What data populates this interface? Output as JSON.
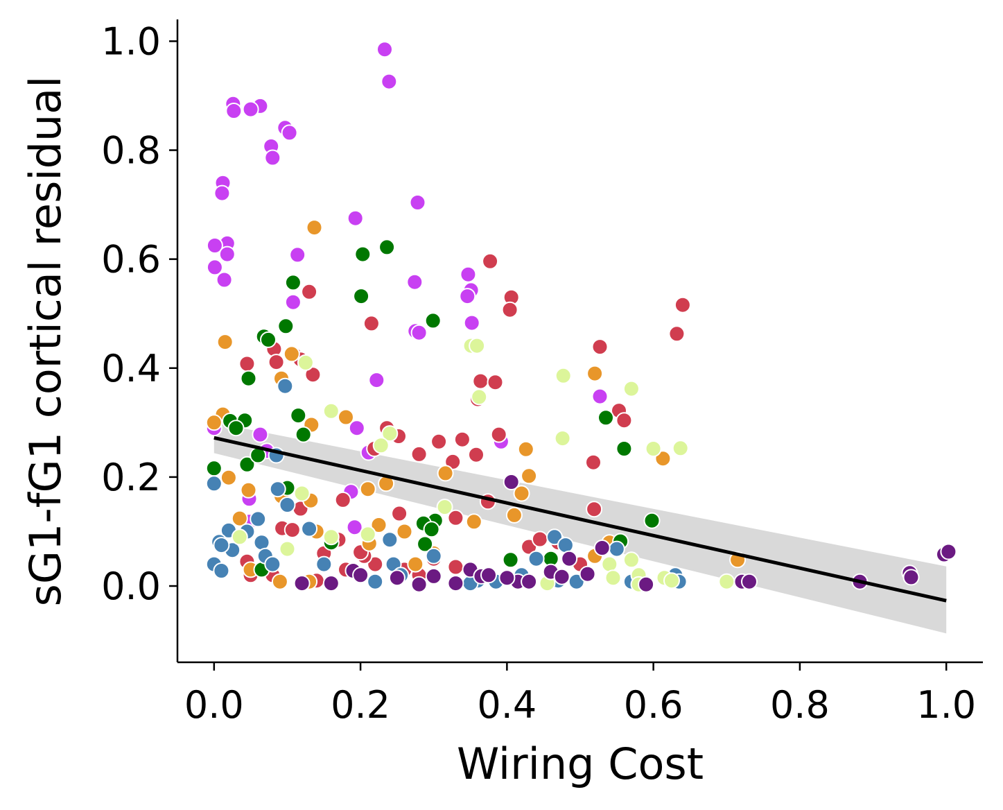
{
  "chart_data": {
    "type": "scatter",
    "title": "",
    "xlabel": "Wiring Cost",
    "ylabel": "sG1-fG1 cortical residual",
    "xlim": [
      -0.05,
      1.05
    ],
    "ylim": [
      -0.14,
      1.04
    ],
    "xticks": [
      0.0,
      0.2,
      0.4,
      0.6,
      0.8,
      1.0
    ],
    "yticks": [
      0.0,
      0.2,
      0.4,
      0.6,
      0.8,
      1.0
    ],
    "xtick_labels": [
      "0.0",
      "0.2",
      "0.4",
      "0.6",
      "0.8",
      "1.0"
    ],
    "ytick_labels": [
      "0.0",
      "0.2",
      "0.4",
      "0.6",
      "0.8",
      "1.0"
    ],
    "grid": false,
    "legend": "none",
    "regression": {
      "color": "#000000",
      "x": [
        0.0,
        1.0
      ],
      "y": [
        0.272,
        -0.027
      ],
      "ci_color": "#d9d9d9",
      "ci_upper": [
        0.3,
        0.036
      ],
      "ci_lower": [
        0.244,
        -0.087
      ]
    },
    "series": [
      {
        "color": "#c840f2",
        "points": [
          [
            0.233,
            0.985
          ],
          [
            0.239,
            0.926
          ],
          [
            0.026,
            0.885
          ],
          [
            0.063,
            0.881
          ],
          [
            0.05,
            0.875
          ],
          [
            0.027,
            0.872
          ],
          [
            0.097,
            0.841
          ],
          [
            0.103,
            0.832
          ],
          [
            0.078,
            0.807
          ],
          [
            0.08,
            0.786
          ],
          [
            0.012,
            0.74
          ],
          [
            0.011,
            0.721
          ],
          [
            0.278,
            0.704
          ],
          [
            0.193,
            0.675
          ],
          [
            0.018,
            0.629
          ],
          [
            0.001,
            0.625
          ],
          [
            0.018,
            0.609
          ],
          [
            0.114,
            0.608
          ],
          [
            0.001,
            0.585
          ],
          [
            0.014,
            0.562
          ],
          [
            0.347,
            0.572
          ],
          [
            0.274,
            0.558
          ],
          [
            0.351,
            0.543
          ],
          [
            0.346,
            0.532
          ],
          [
            0.108,
            0.521
          ],
          [
            0.352,
            0.483
          ],
          [
            0.275,
            0.468
          ],
          [
            0.28,
            0.465
          ],
          [
            0.222,
            0.378
          ],
          [
            0.527,
            0.348
          ],
          [
            0.195,
            0.29
          ],
          [
            0.063,
            0.278
          ],
          [
            0.072,
            0.248
          ],
          [
            0.392,
            0.265
          ],
          [
            0.0,
            0.29
          ],
          [
            0.211,
            0.245
          ],
          [
            0.187,
            0.173
          ],
          [
            0.048,
            0.16
          ],
          [
            0.192,
            0.108
          ],
          [
            0.048,
            0.118
          ]
        ]
      },
      {
        "color": "#d03d4f",
        "points": [
          [
            0.377,
            0.596
          ],
          [
            0.406,
            0.53
          ],
          [
            0.404,
            0.507
          ],
          [
            0.632,
            0.463
          ],
          [
            0.64,
            0.516
          ],
          [
            0.13,
            0.54
          ],
          [
            0.215,
            0.482
          ],
          [
            0.527,
            0.439
          ],
          [
            0.082,
            0.435
          ],
          [
            0.11,
            0.424
          ],
          [
            0.118,
            0.416
          ],
          [
            0.045,
            0.408
          ],
          [
            0.085,
            0.411
          ],
          [
            0.135,
            0.388
          ],
          [
            0.364,
            0.376
          ],
          [
            0.384,
            0.374
          ],
          [
            0.36,
            0.343
          ],
          [
            0.553,
            0.322
          ],
          [
            0.56,
            0.304
          ],
          [
            0.236,
            0.29
          ],
          [
            0.252,
            0.275
          ],
          [
            0.339,
            0.269
          ],
          [
            0.307,
            0.265
          ],
          [
            0.219,
            0.252
          ],
          [
            0.389,
            0.278
          ],
          [
            0.28,
            0.242
          ],
          [
            0.358,
            0.241
          ],
          [
            0.518,
            0.227
          ],
          [
            0.326,
            0.228
          ],
          [
            0.519,
            0.141
          ],
          [
            0.374,
            0.155
          ],
          [
            0.176,
            0.158
          ],
          [
            0.253,
            0.133
          ],
          [
            0.118,
            0.142
          ],
          [
            0.33,
            0.125
          ],
          [
            0.093,
            0.106
          ],
          [
            0.107,
            0.103
          ],
          [
            0.045,
            0.045
          ],
          [
            0.15,
            0.06
          ],
          [
            0.17,
            0.085
          ],
          [
            0.22,
            0.04
          ],
          [
            0.26,
            0.03
          ],
          [
            0.43,
            0.072
          ],
          [
            0.445,
            0.086
          ],
          [
            0.18,
            0.03
          ],
          [
            0.205,
            0.055
          ],
          [
            0.28,
            0.02
          ],
          [
            0.33,
            0.035
          ],
          [
            0.3,
            0.05
          ],
          [
            0.47,
            0.08
          ],
          [
            0.5,
            0.04
          ],
          [
            0.05,
            0.02
          ],
          [
            0.08,
            0.02
          ],
          [
            0.14,
            0.01
          ],
          [
            0.2,
            0.062
          ]
        ]
      },
      {
        "color": "#e8962a",
        "points": [
          [
            0.137,
            0.658
          ],
          [
            0.015,
            0.448
          ],
          [
            0.106,
            0.426
          ],
          [
            0.092,
            0.381
          ],
          [
            0.52,
            0.39
          ],
          [
            0.613,
            0.234
          ],
          [
            0.133,
            0.296
          ],
          [
            0.18,
            0.31
          ],
          [
            0.012,
            0.315
          ],
          [
            0.426,
            0.251
          ],
          [
            0.316,
            0.207
          ],
          [
            0.43,
            0.202
          ],
          [
            0.02,
            0.199
          ],
          [
            0.235,
            0.188
          ],
          [
            0.21,
            0.178
          ],
          [
            0.42,
            0.17
          ],
          [
            0.047,
            0.176
          ],
          [
            0.132,
            0.157
          ],
          [
            0.092,
            0.165
          ],
          [
            0.41,
            0.13
          ],
          [
            0.355,
            0.118
          ],
          [
            0.035,
            0.124
          ],
          [
            0.225,
            0.112
          ],
          [
            0.26,
            0.1
          ],
          [
            0.14,
            0.1
          ],
          [
            0.212,
            0.078
          ],
          [
            0.52,
            0.055
          ],
          [
            0.54,
            0.08
          ],
          [
            0.715,
            0.048
          ],
          [
            0.05,
            0.03
          ],
          [
            0.09,
            0.008
          ],
          [
            0.13,
            0.008
          ],
          [
            0.275,
            0.04
          ],
          [
            0.3,
            0.06
          ],
          [
            0.0,
            0.3
          ]
        ]
      },
      {
        "color": "#007800",
        "points": [
          [
            0.236,
            0.622
          ],
          [
            0.203,
            0.609
          ],
          [
            0.201,
            0.532
          ],
          [
            0.108,
            0.557
          ],
          [
            0.299,
            0.487
          ],
          [
            0.098,
            0.477
          ],
          [
            0.068,
            0.458
          ],
          [
            0.074,
            0.452
          ],
          [
            0.047,
            0.381
          ],
          [
            0.115,
            0.313
          ],
          [
            0.535,
            0.309
          ],
          [
            0.022,
            0.303
          ],
          [
            0.042,
            0.304
          ],
          [
            0.03,
            0.29
          ],
          [
            0.56,
            0.252
          ],
          [
            0.122,
            0.278
          ],
          [
            0.045,
            0.223
          ],
          [
            0.0,
            0.216
          ],
          [
            0.06,
            0.24
          ],
          [
            0.598,
            0.12
          ],
          [
            0.302,
            0.12
          ],
          [
            0.286,
            0.115
          ],
          [
            0.297,
            0.104
          ],
          [
            0.288,
            0.077
          ],
          [
            0.555,
            0.082
          ],
          [
            0.405,
            0.048
          ],
          [
            0.46,
            0.05
          ],
          [
            0.065,
            0.03
          ],
          [
            0.16,
            0.08
          ],
          [
            0.1,
            0.18
          ]
        ]
      },
      {
        "color": "#4682b4",
        "points": [
          [
            0.097,
            0.367
          ],
          [
            0.085,
            0.24
          ],
          [
            0.0,
            0.188
          ],
          [
            0.087,
            0.178
          ],
          [
            0.1,
            0.149
          ],
          [
            0.02,
            0.102
          ],
          [
            0.06,
            0.123
          ],
          [
            0.007,
            0.081
          ],
          [
            0.025,
            0.066
          ],
          [
            0.065,
            0.08
          ],
          [
            0.045,
            0.1
          ],
          [
            0.01,
            0.075
          ],
          [
            0.07,
            0.055
          ],
          [
            0.0,
            0.04
          ],
          [
            0.01,
            0.028
          ],
          [
            0.08,
            0.04
          ],
          [
            0.13,
            0.105
          ],
          [
            0.15,
            0.04
          ],
          [
            0.24,
            0.085
          ],
          [
            0.245,
            0.04
          ],
          [
            0.3,
            0.055
          ],
          [
            0.36,
            0.01
          ],
          [
            0.385,
            0.008
          ],
          [
            0.42,
            0.02
          ],
          [
            0.44,
            0.05
          ],
          [
            0.465,
            0.09
          ],
          [
            0.48,
            0.075
          ],
          [
            0.47,
            0.01
          ],
          [
            0.495,
            0.008
          ],
          [
            0.55,
            0.068
          ],
          [
            0.57,
            0.008
          ],
          [
            0.59,
            0.003
          ],
          [
            0.63,
            0.02
          ],
          [
            0.635,
            0.008
          ],
          [
            0.22,
            0.008
          ],
          [
            0.255,
            0.02
          ],
          [
            0.35,
            0.005
          ]
        ]
      },
      {
        "color": "#dcf59a",
        "points": [
          [
            0.351,
            0.441
          ],
          [
            0.359,
            0.441
          ],
          [
            0.477,
            0.386
          ],
          [
            0.57,
            0.362
          ],
          [
            0.362,
            0.347
          ],
          [
            0.16,
            0.321
          ],
          [
            0.476,
            0.271
          ],
          [
            0.24,
            0.28
          ],
          [
            0.228,
            0.258
          ],
          [
            0.6,
            0.252
          ],
          [
            0.637,
            0.253
          ],
          [
            0.125,
            0.41
          ],
          [
            0.12,
            0.17
          ],
          [
            0.315,
            0.145
          ],
          [
            0.21,
            0.095
          ],
          [
            0.16,
            0.09
          ],
          [
            0.1,
            0.068
          ],
          [
            0.54,
            0.04
          ],
          [
            0.545,
            0.015
          ],
          [
            0.57,
            0.048
          ],
          [
            0.58,
            0.02
          ],
          [
            0.615,
            0.015
          ],
          [
            0.625,
            0.01
          ],
          [
            0.7,
            0.008
          ],
          [
            0.455,
            0.005
          ],
          [
            0.58,
            0.003
          ],
          [
            0.035,
            0.09
          ]
        ]
      },
      {
        "color": "#6b1a82",
        "points": [
          [
            0.997,
            0.058
          ],
          [
            1.003,
            0.063
          ],
          [
            0.95,
            0.024
          ],
          [
            0.952,
            0.016
          ],
          [
            0.882,
            0.008
          ],
          [
            0.721,
            0.008
          ],
          [
            0.731,
            0.008
          ],
          [
            0.406,
            0.191
          ],
          [
            0.415,
            0.008
          ],
          [
            0.43,
            0.008
          ],
          [
            0.46,
            0.026
          ],
          [
            0.475,
            0.017
          ],
          [
            0.485,
            0.05
          ],
          [
            0.51,
            0.022
          ],
          [
            0.53,
            0.07
          ],
          [
            0.59,
            0.003
          ],
          [
            0.12,
            0.005
          ],
          [
            0.16,
            0.005
          ],
          [
            0.19,
            0.028
          ],
          [
            0.25,
            0.015
          ],
          [
            0.28,
            0.003
          ],
          [
            0.33,
            0.005
          ],
          [
            0.35,
            0.03
          ],
          [
            0.365,
            0.018
          ],
          [
            0.375,
            0.02
          ],
          [
            0.4,
            0.015
          ],
          [
            0.2,
            0.02
          ],
          [
            0.3,
            0.018
          ]
        ]
      }
    ]
  }
}
